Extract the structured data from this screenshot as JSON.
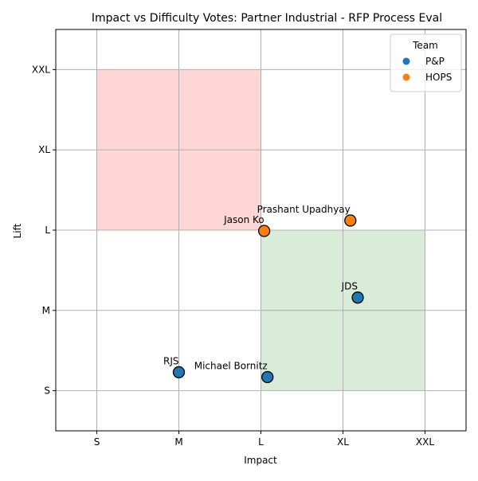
{
  "chart_data": {
    "type": "scatter",
    "title": "Impact vs Difficulty Votes: Partner Industrial - RFP Process Eval",
    "xlabel": "Impact",
    "ylabel": "Lift",
    "x_categories": [
      "S",
      "M",
      "L",
      "XL",
      "XXL"
    ],
    "y_categories": [
      "S",
      "M",
      "L",
      "XL",
      "XXL"
    ],
    "xlim": [
      -0.5,
      4.5
    ],
    "ylim": [
      -0.5,
      4.5
    ],
    "grid": true,
    "legend": {
      "title": "Team",
      "placement": "top-right",
      "entries": [
        {
          "name": "P&P",
          "color": "#1f77b4"
        },
        {
          "name": "HOPS",
          "color": "#ff7f0e"
        }
      ]
    },
    "regions": [
      {
        "kind": "avoid",
        "x_range": [
          0,
          2
        ],
        "y_range": [
          2,
          4
        ],
        "color": "#ffd6d6"
      },
      {
        "kind": "target",
        "x_range": [
          2,
          4
        ],
        "y_range": [
          0,
          2
        ],
        "color": "#d9ebd9"
      }
    ],
    "points": [
      {
        "label": "RJS",
        "team": "P&P",
        "x": 1.0,
        "y": 0.23
      },
      {
        "label": "Michael Bornitz",
        "team": "P&P",
        "x": 2.08,
        "y": 0.17
      },
      {
        "label": "JDS",
        "team": "P&P",
        "x": 3.18,
        "y": 1.16
      },
      {
        "label": "Jason Ko",
        "team": "HOPS",
        "x": 2.04,
        "y": 1.99
      },
      {
        "label": "Prashant Upadhyay",
        "team": "HOPS",
        "x": 3.09,
        "y": 2.12
      }
    ]
  }
}
